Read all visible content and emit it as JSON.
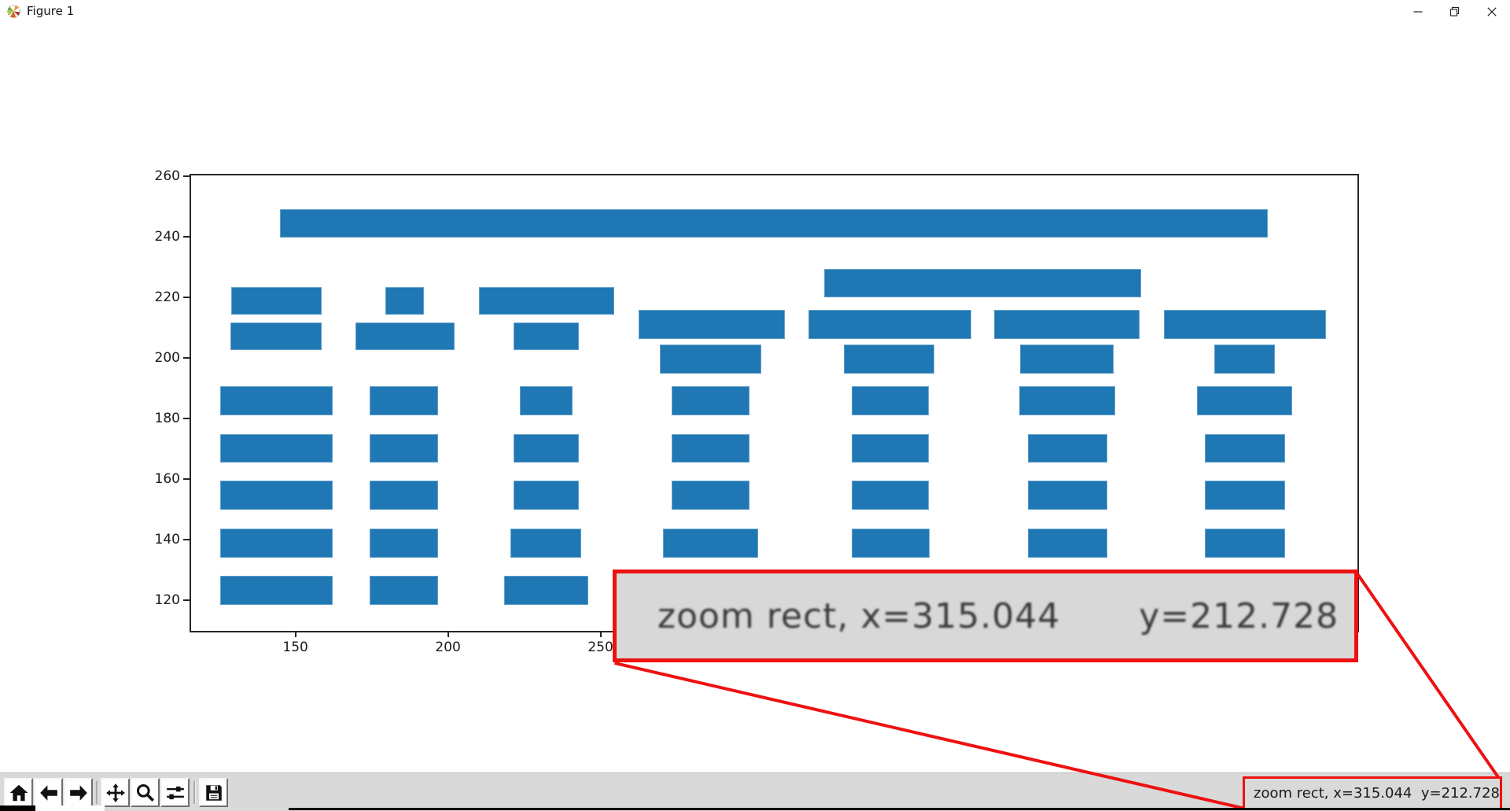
{
  "window": {
    "title": "Figure 1",
    "controls": {
      "minimize": "minimize",
      "restore": "restore",
      "close": "close"
    }
  },
  "chart_data": {
    "type": "bar",
    "subtype": "horizontal-broken-bars",
    "title": "",
    "xlabel": "",
    "ylabel": "",
    "xlim": [
      115.8,
      498.1
    ],
    "ylim": [
      109.8,
      260.3
    ],
    "xticks": [
      150,
      200,
      250
    ],
    "yticks": [
      120,
      140,
      160,
      180,
      200,
      220,
      240,
      260
    ],
    "bar_color": "#1f77b4",
    "bars": [
      {
        "x0": 144.9,
        "x1": 468.6,
        "y0": 239.7,
        "y1": 249.2
      },
      {
        "x0": 323.3,
        "x1": 427.1,
        "y0": 220.0,
        "y1": 229.3
      },
      {
        "x0": 128.9,
        "x1": 158.5,
        "y0": 214.3,
        "y1": 223.4
      },
      {
        "x0": 179.6,
        "x1": 192.2,
        "y0": 214.3,
        "y1": 223.4
      },
      {
        "x0": 210.2,
        "x1": 254.4,
        "y0": 214.3,
        "y1": 223.4
      },
      {
        "x0": 128.7,
        "x1": 158.7,
        "y0": 202.7,
        "y1": 211.7
      },
      {
        "x0": 169.8,
        "x1": 202.2,
        "y0": 202.7,
        "y1": 211.7
      },
      {
        "x0": 221.5,
        "x1": 242.8,
        "y0": 202.7,
        "y1": 211.7
      },
      {
        "x0": 262.4,
        "x1": 310.4,
        "y0": 206.3,
        "y1": 215.9
      },
      {
        "x0": 318.1,
        "x1": 371.4,
        "y0": 206.3,
        "y1": 215.9
      },
      {
        "x0": 379.0,
        "x1": 426.6,
        "y0": 206.3,
        "y1": 215.9
      },
      {
        "x0": 434.6,
        "x1": 487.9,
        "y0": 206.3,
        "y1": 215.9
      },
      {
        "x0": 269.5,
        "x1": 302.7,
        "y0": 194.7,
        "y1": 204.3
      },
      {
        "x0": 329.7,
        "x1": 359.3,
        "y0": 194.7,
        "y1": 204.3
      },
      {
        "x0": 387.5,
        "x1": 418.1,
        "y0": 194.7,
        "y1": 204.3
      },
      {
        "x0": 451.3,
        "x1": 471.1,
        "y0": 194.7,
        "y1": 204.3
      },
      {
        "x0": 125.3,
        "x1": 162.1,
        "y0": 181.0,
        "y1": 190.6
      },
      {
        "x0": 174.4,
        "x1": 196.8,
        "y0": 181.0,
        "y1": 190.6
      },
      {
        "x0": 223.5,
        "x1": 240.7,
        "y0": 181.0,
        "y1": 190.6
      },
      {
        "x0": 273.4,
        "x1": 298.8,
        "y0": 181.0,
        "y1": 190.6
      },
      {
        "x0": 332.3,
        "x1": 357.5,
        "y0": 181.0,
        "y1": 190.6
      },
      {
        "x0": 387.3,
        "x1": 418.6,
        "y0": 181.0,
        "y1": 190.6
      },
      {
        "x0": 445.4,
        "x1": 476.7,
        "y0": 181.0,
        "y1": 190.6
      },
      {
        "x0": 125.3,
        "x1": 162.1,
        "y0": 165.3,
        "y1": 174.8
      },
      {
        "x0": 174.4,
        "x1": 196.8,
        "y0": 165.3,
        "y1": 174.8
      },
      {
        "x0": 221.5,
        "x1": 242.8,
        "y0": 165.3,
        "y1": 174.8
      },
      {
        "x0": 273.4,
        "x1": 298.8,
        "y0": 165.3,
        "y1": 174.8
      },
      {
        "x0": 332.3,
        "x1": 357.5,
        "y0": 165.3,
        "y1": 174.8
      },
      {
        "x0": 390.1,
        "x1": 416.1,
        "y0": 165.3,
        "y1": 174.8
      },
      {
        "x0": 448.2,
        "x1": 474.4,
        "y0": 165.3,
        "y1": 174.8
      },
      {
        "x0": 125.3,
        "x1": 162.1,
        "y0": 149.7,
        "y1": 159.4
      },
      {
        "x0": 174.4,
        "x1": 196.8,
        "y0": 149.7,
        "y1": 159.4
      },
      {
        "x0": 221.5,
        "x1": 242.8,
        "y0": 149.7,
        "y1": 159.4
      },
      {
        "x0": 273.4,
        "x1": 298.8,
        "y0": 149.7,
        "y1": 159.4
      },
      {
        "x0": 332.3,
        "x1": 357.5,
        "y0": 149.7,
        "y1": 159.4
      },
      {
        "x0": 390.1,
        "x1": 416.1,
        "y0": 149.7,
        "y1": 159.4
      },
      {
        "x0": 448.2,
        "x1": 474.4,
        "y0": 149.7,
        "y1": 159.4
      },
      {
        "x0": 125.3,
        "x1": 162.1,
        "y0": 134.1,
        "y1": 143.6
      },
      {
        "x0": 174.4,
        "x1": 196.8,
        "y0": 134.1,
        "y1": 143.6
      },
      {
        "x0": 220.4,
        "x1": 243.6,
        "y0": 134.1,
        "y1": 143.6
      },
      {
        "x0": 270.6,
        "x1": 301.6,
        "y0": 134.1,
        "y1": 143.6
      },
      {
        "x0": 332.3,
        "x1": 357.8,
        "y0": 134.1,
        "y1": 143.6
      },
      {
        "x0": 390.1,
        "x1": 416.1,
        "y0": 134.1,
        "y1": 143.6
      },
      {
        "x0": 448.2,
        "x1": 474.4,
        "y0": 134.1,
        "y1": 143.6
      },
      {
        "x0": 125.3,
        "x1": 162.1,
        "y0": 118.3,
        "y1": 128.1
      },
      {
        "x0": 174.4,
        "x1": 196.8,
        "y0": 118.3,
        "y1": 128.1
      },
      {
        "x0": 218.4,
        "x1": 246.1,
        "y0": 118.3,
        "y1": 128.1
      }
    ]
  },
  "toolbar": {
    "buttons": [
      {
        "name": "home"
      },
      {
        "name": "back"
      },
      {
        "name": "forward"
      },
      {
        "name": "pan"
      },
      {
        "name": "zoom-to-rect"
      },
      {
        "name": "configure-subplots"
      },
      {
        "name": "save"
      }
    ]
  },
  "statusbar": {
    "message_x": "zoom rect, x=315.044",
    "message_y": "y=212.728"
  },
  "callout": {
    "message_x": "zoom rect, x=315.044",
    "message_y": "y=212.728",
    "border_color": "#ee1111",
    "bg": "#d8d8d8"
  }
}
